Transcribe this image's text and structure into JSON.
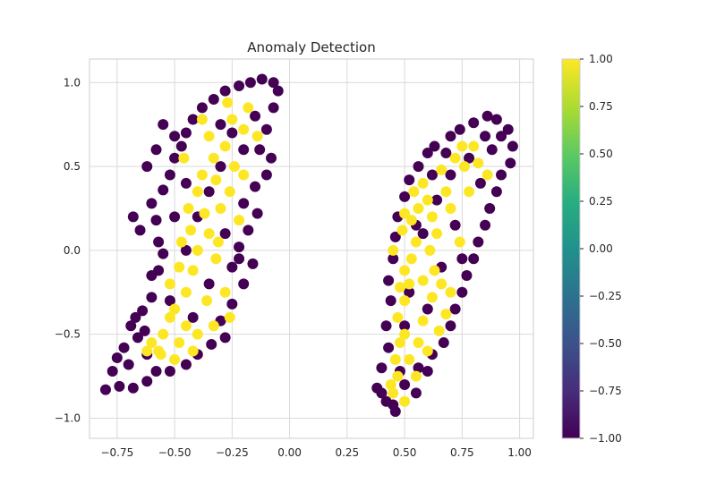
{
  "chart_data": {
    "type": "scatter",
    "title": "Anomaly Detection",
    "xlabel": "",
    "ylabel": "",
    "xlim": [
      -0.87,
      1.06
    ],
    "ylim": [
      -1.12,
      1.14
    ],
    "xticks": [
      -0.75,
      -0.5,
      -0.25,
      0.0,
      0.25,
      0.5,
      0.75,
      1.0
    ],
    "xtick_labels": [
      "−0.75",
      "−0.50",
      "−0.25",
      "0.00",
      "0.25",
      "0.50",
      "0.75",
      "1.00"
    ],
    "yticks": [
      -1.0,
      -0.5,
      0.0,
      0.5,
      1.0
    ],
    "ytick_labels": [
      "−1.0",
      "−0.5",
      "0.0",
      "0.5",
      "1.0"
    ],
    "grid": true,
    "colormap": "viridis",
    "colors": {
      "low": "#440154",
      "high": "#fde725"
    },
    "colorbar": {
      "range": [
        -1.0,
        1.0
      ],
      "ticks": [
        1.0,
        0.75,
        0.5,
        0.25,
        0.0,
        -0.25,
        -0.5,
        -0.75,
        -1.0
      ],
      "tick_labels": [
        "1.00",
        "0.75",
        "0.50",
        "0.25",
        "0.00",
        "−0.25",
        "−0.50",
        "−0.75",
        "−1.00"
      ]
    },
    "clusters": [
      {
        "points": [
          [
            -0.8,
            -0.83
          ],
          [
            -0.77,
            -0.72
          ],
          [
            -0.74,
            -0.81
          ],
          [
            -0.72,
            -0.58
          ],
          [
            -0.7,
            -0.68
          ],
          [
            -0.69,
            -0.45
          ],
          [
            -0.66,
            -0.52
          ],
          [
            -0.64,
            -0.36
          ],
          [
            -0.62,
            -0.62
          ],
          [
            -0.6,
            -0.28
          ],
          [
            -0.58,
            -0.72
          ],
          [
            -0.57,
            -0.12
          ],
          [
            -0.55,
            -0.02
          ],
          [
            -0.6,
            -0.15
          ],
          [
            -0.58,
            0.18
          ],
          [
            -0.6,
            0.28
          ],
          [
            -0.55,
            0.36
          ],
          [
            -0.52,
            0.45
          ],
          [
            -0.5,
            0.55
          ],
          [
            -0.47,
            0.62
          ],
          [
            -0.45,
            0.7
          ],
          [
            -0.42,
            0.78
          ],
          [
            -0.5,
            0.68
          ],
          [
            -0.38,
            0.85
          ],
          [
            -0.33,
            0.9
          ],
          [
            -0.28,
            0.95
          ],
          [
            -0.22,
            0.98
          ],
          [
            -0.17,
            1.0
          ],
          [
            -0.12,
            1.02
          ],
          [
            -0.07,
            1.0
          ],
          [
            -0.05,
            0.95
          ],
          [
            -0.07,
            0.85
          ],
          [
            -0.1,
            0.72
          ],
          [
            -0.13,
            0.6
          ],
          [
            -0.08,
            0.55
          ],
          [
            -0.1,
            0.45
          ],
          [
            -0.15,
            0.38
          ],
          [
            -0.2,
            0.28
          ],
          [
            -0.14,
            0.22
          ],
          [
            -0.18,
            0.12
          ],
          [
            -0.22,
            0.02
          ],
          [
            -0.16,
            -0.08
          ],
          [
            -0.25,
            -0.1
          ],
          [
            -0.2,
            -0.2
          ],
          [
            -0.25,
            -0.32
          ],
          [
            -0.3,
            -0.42
          ],
          [
            -0.28,
            -0.52
          ],
          [
            -0.34,
            -0.56
          ],
          [
            -0.4,
            -0.62
          ],
          [
            -0.45,
            -0.68
          ],
          [
            -0.52,
            -0.72
          ],
          [
            -0.62,
            -0.78
          ],
          [
            -0.68,
            -0.82
          ],
          [
            -0.75,
            -0.64
          ],
          [
            -0.67,
            -0.4
          ],
          [
            -0.63,
            -0.48
          ],
          [
            -0.35,
            0.35
          ],
          [
            -0.3,
            0.5
          ],
          [
            -0.4,
            0.2
          ],
          [
            -0.45,
            0.0
          ],
          [
            -0.35,
            -0.2
          ],
          [
            -0.25,
            0.7
          ],
          [
            -0.2,
            0.6
          ],
          [
            -0.15,
            0.8
          ],
          [
            -0.3,
            0.75
          ],
          [
            -0.45,
            0.4
          ],
          [
            -0.5,
            0.2
          ],
          [
            -0.52,
            -0.3
          ],
          [
            -0.42,
            -0.4
          ],
          [
            -0.28,
            0.1
          ],
          [
            -0.22,
            -0.05
          ],
          [
            -0.58,
            0.6
          ],
          [
            -0.55,
            0.75
          ],
          [
            -0.62,
            0.5
          ],
          [
            -0.65,
            0.12
          ],
          [
            -0.68,
            0.2
          ],
          [
            -0.57,
            0.05
          ]
        ],
        "anomalies": [
          [
            -0.6,
            -0.55
          ],
          [
            -0.57,
            -0.6
          ],
          [
            -0.55,
            -0.5
          ],
          [
            -0.52,
            -0.4
          ],
          [
            -0.5,
            -0.35
          ],
          [
            -0.52,
            -0.2
          ],
          [
            -0.48,
            -0.1
          ],
          [
            -0.45,
            -0.25
          ],
          [
            -0.42,
            -0.12
          ],
          [
            -0.47,
            0.05
          ],
          [
            -0.43,
            0.12
          ],
          [
            -0.4,
            0.0
          ],
          [
            -0.44,
            0.25
          ],
          [
            -0.4,
            0.35
          ],
          [
            -0.37,
            0.22
          ],
          [
            -0.35,
            0.1
          ],
          [
            -0.38,
            0.45
          ],
          [
            -0.32,
            0.42
          ],
          [
            -0.33,
            0.55
          ],
          [
            -0.28,
            0.62
          ],
          [
            -0.3,
            0.25
          ],
          [
            -0.26,
            0.35
          ],
          [
            -0.24,
            0.5
          ],
          [
            -0.2,
            0.45
          ],
          [
            -0.25,
            0.78
          ],
          [
            -0.2,
            0.72
          ],
          [
            -0.18,
            0.85
          ],
          [
            -0.14,
            0.68
          ],
          [
            -0.22,
            0.18
          ],
          [
            -0.32,
            -0.05
          ],
          [
            -0.36,
            -0.3
          ],
          [
            -0.4,
            -0.5
          ],
          [
            -0.48,
            -0.55
          ],
          [
            -0.45,
            -0.45
          ],
          [
            -0.56,
            -0.62
          ],
          [
            -0.35,
            0.68
          ],
          [
            -0.38,
            0.78
          ],
          [
            -0.46,
            0.55
          ],
          [
            -0.27,
            0.88
          ],
          [
            -0.31,
            0.05
          ],
          [
            -0.28,
            -0.25
          ],
          [
            -0.42,
            -0.6
          ],
          [
            -0.62,
            -0.6
          ],
          [
            -0.5,
            -0.65
          ],
          [
            -0.33,
            -0.45
          ],
          [
            -0.26,
            -0.4
          ]
        ]
      },
      {
        "points": [
          [
            0.38,
            -0.82
          ],
          [
            0.42,
            -0.9
          ],
          [
            0.46,
            -0.96
          ],
          [
            0.4,
            -0.7
          ],
          [
            0.43,
            -0.58
          ],
          [
            0.42,
            -0.45
          ],
          [
            0.44,
            -0.3
          ],
          [
            0.43,
            -0.18
          ],
          [
            0.45,
            -0.05
          ],
          [
            0.46,
            0.08
          ],
          [
            0.47,
            0.2
          ],
          [
            0.5,
            0.32
          ],
          [
            0.52,
            0.42
          ],
          [
            0.56,
            0.5
          ],
          [
            0.6,
            0.58
          ],
          [
            0.63,
            0.62
          ],
          [
            0.7,
            0.68
          ],
          [
            0.74,
            0.72
          ],
          [
            0.8,
            0.76
          ],
          [
            0.86,
            0.8
          ],
          [
            0.9,
            0.78
          ],
          [
            0.95,
            0.72
          ],
          [
            0.97,
            0.62
          ],
          [
            0.96,
            0.52
          ],
          [
            0.92,
            0.45
          ],
          [
            0.9,
            0.35
          ],
          [
            0.87,
            0.25
          ],
          [
            0.85,
            0.15
          ],
          [
            0.82,
            0.05
          ],
          [
            0.8,
            -0.05
          ],
          [
            0.77,
            -0.15
          ],
          [
            0.75,
            -0.25
          ],
          [
            0.72,
            -0.35
          ],
          [
            0.7,
            -0.45
          ],
          [
            0.67,
            -0.55
          ],
          [
            0.62,
            -0.62
          ],
          [
            0.56,
            -0.7
          ],
          [
            0.5,
            -0.8
          ],
          [
            0.45,
            -0.92
          ],
          [
            0.55,
            -0.85
          ],
          [
            0.6,
            -0.72
          ],
          [
            0.52,
            -0.25
          ],
          [
            0.58,
            0.1
          ],
          [
            0.64,
            0.3
          ],
          [
            0.7,
            0.45
          ],
          [
            0.78,
            0.55
          ],
          [
            0.83,
            0.4
          ],
          [
            0.88,
            0.6
          ],
          [
            0.66,
            -0.1
          ],
          [
            0.6,
            -0.35
          ],
          [
            0.55,
            0.15
          ],
          [
            0.72,
            0.15
          ],
          [
            0.75,
            -0.05
          ],
          [
            0.5,
            -0.45
          ],
          [
            0.62,
            0.45
          ],
          [
            0.85,
            0.68
          ],
          [
            0.92,
            0.68
          ],
          [
            0.68,
            0.58
          ],
          [
            0.48,
            -0.72
          ],
          [
            0.4,
            -0.85
          ]
        ],
        "anomalies": [
          [
            0.44,
            -0.8
          ],
          [
            0.47,
            -0.75
          ],
          [
            0.46,
            -0.65
          ],
          [
            0.48,
            -0.55
          ],
          [
            0.5,
            -0.5
          ],
          [
            0.47,
            -0.4
          ],
          [
            0.5,
            -0.3
          ],
          [
            0.52,
            -0.2
          ],
          [
            0.5,
            -0.12
          ],
          [
            0.53,
            -0.05
          ],
          [
            0.55,
            0.05
          ],
          [
            0.53,
            0.18
          ],
          [
            0.56,
            0.25
          ],
          [
            0.6,
            0.3
          ],
          [
            0.58,
            0.4
          ],
          [
            0.62,
            0.2
          ],
          [
            0.64,
            0.1
          ],
          [
            0.61,
            0.0
          ],
          [
            0.63,
            -0.12
          ],
          [
            0.66,
            -0.2
          ],
          [
            0.62,
            -0.28
          ],
          [
            0.58,
            -0.42
          ],
          [
            0.56,
            -0.55
          ],
          [
            0.52,
            -0.65
          ],
          [
            0.55,
            -0.75
          ],
          [
            0.5,
            -0.9
          ],
          [
            0.45,
            -0.85
          ],
          [
            0.68,
            0.35
          ],
          [
            0.7,
            0.25
          ],
          [
            0.66,
            0.48
          ],
          [
            0.72,
            0.55
          ],
          [
            0.76,
            0.5
          ],
          [
            0.8,
            0.62
          ],
          [
            0.78,
            0.35
          ],
          [
            0.74,
            0.05
          ],
          [
            0.7,
            -0.25
          ],
          [
            0.68,
            -0.38
          ],
          [
            0.58,
            -0.18
          ],
          [
            0.54,
            0.35
          ],
          [
            0.82,
            0.52
          ],
          [
            0.86,
            0.45
          ],
          [
            0.6,
            -0.6
          ],
          [
            0.48,
            -0.22
          ],
          [
            0.45,
            0.0
          ],
          [
            0.49,
            0.12
          ],
          [
            0.5,
            0.22
          ],
          [
            0.75,
            0.62
          ],
          [
            0.65,
            -0.48
          ]
        ]
      }
    ]
  }
}
